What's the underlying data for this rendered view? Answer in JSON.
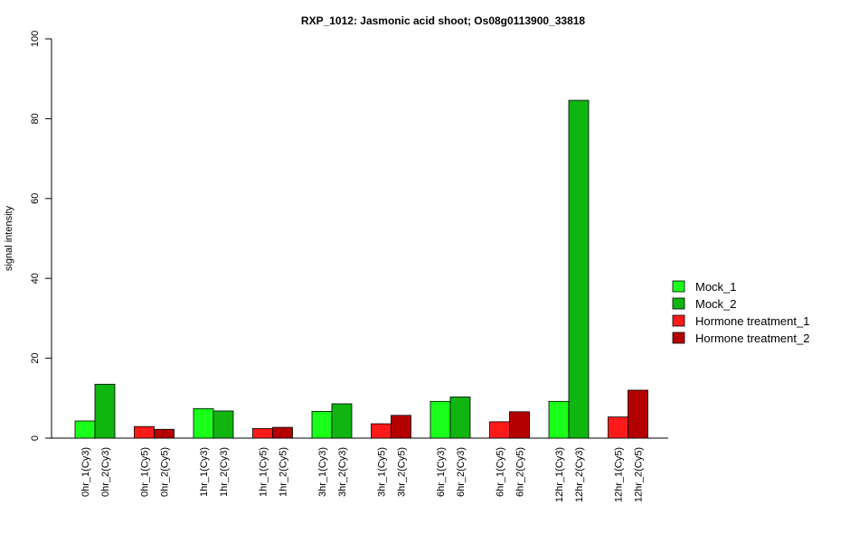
{
  "chart_data": {
    "type": "bar",
    "title": "RXP_1012: Jasmonic acid shoot; Os08g0113900_33818",
    "xlabel": "",
    "ylabel": "signal intensity",
    "ylim": [
      0,
      100
    ],
    "yticks": [
      0,
      20,
      40,
      60,
      80,
      100
    ],
    "grid": false,
    "legend_position": "right",
    "legend": [
      {
        "label": "Mock_1",
        "color": "#1aff1a"
      },
      {
        "label": "Mock_2",
        "color": "#10b510"
      },
      {
        "label": "Hormone treatment_1",
        "color": "#ff1a1a"
      },
      {
        "label": "Hormone treatment_2",
        "color": "#b50000"
      }
    ],
    "bars": [
      {
        "label": "0hr_1(Cy3)",
        "value": 4.3,
        "series": 0
      },
      {
        "label": "0hr_2(Cy3)",
        "value": 13.5,
        "series": 1
      },
      {
        "label": "0hr_1(Cy5)",
        "value": 2.9,
        "series": 2
      },
      {
        "label": "0hr_2(Cy5)",
        "value": 2.2,
        "series": 3
      },
      {
        "label": "1hr_1(Cy3)",
        "value": 7.4,
        "series": 0
      },
      {
        "label": "1hr_2(Cy3)",
        "value": 6.8,
        "series": 1
      },
      {
        "label": "1hr_1(Cy5)",
        "value": 2.4,
        "series": 2
      },
      {
        "label": "1hr_2(Cy5)",
        "value": 2.7,
        "series": 3
      },
      {
        "label": "3hr_1(Cy3)",
        "value": 6.7,
        "series": 0
      },
      {
        "label": "3hr_2(Cy3)",
        "value": 8.6,
        "series": 1
      },
      {
        "label": "3hr_1(Cy5)",
        "value": 3.6,
        "series": 2
      },
      {
        "label": "3hr_2(Cy5)",
        "value": 5.7,
        "series": 3
      },
      {
        "label": "6hr_1(Cy3)",
        "value": 9.2,
        "series": 0
      },
      {
        "label": "6hr_2(Cy3)",
        "value": 10.3,
        "series": 1
      },
      {
        "label": "6hr_1(Cy5)",
        "value": 4.1,
        "series": 2
      },
      {
        "label": "6hr_2(Cy5)",
        "value": 6.6,
        "series": 3
      },
      {
        "label": "12hr_1(Cy3)",
        "value": 9.2,
        "series": 0
      },
      {
        "label": "12hr_2(Cy3)",
        "value": 84.6,
        "series": 1
      },
      {
        "label": "12hr_1(Cy5)",
        "value": 5.3,
        "series": 2
      },
      {
        "label": "12hr_2(Cy5)",
        "value": 12.0,
        "series": 3
      }
    ]
  }
}
